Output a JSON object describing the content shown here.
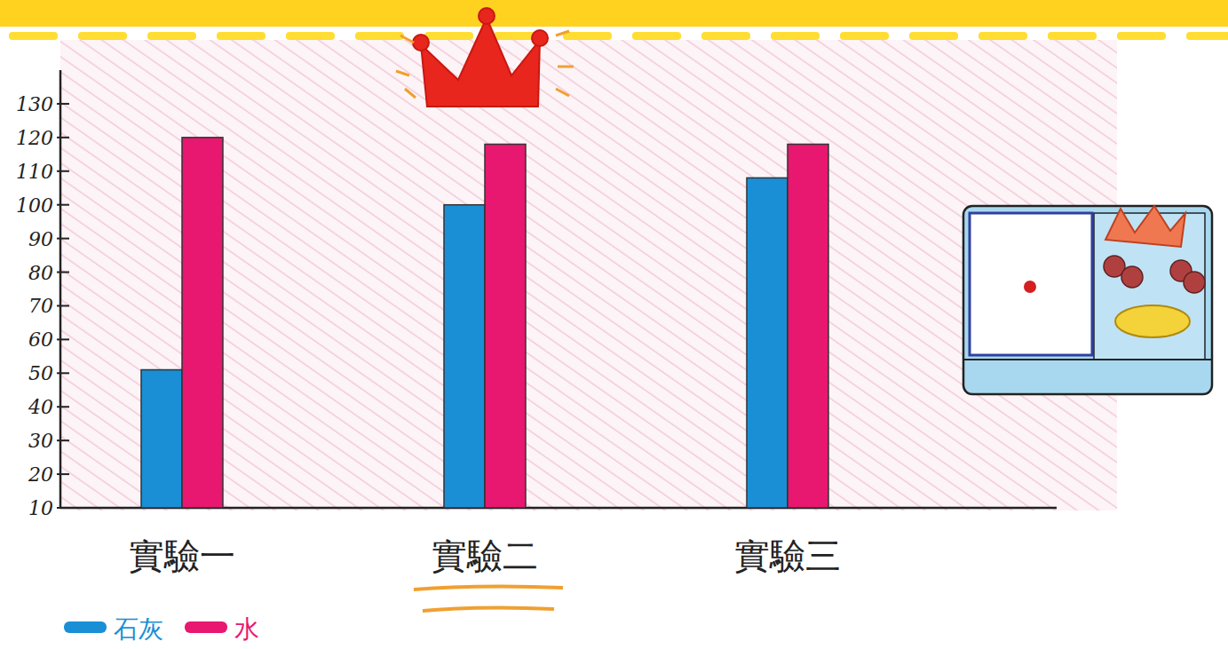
{
  "chart_data": {
    "type": "bar",
    "categories": [
      "實驗一",
      "實驗二",
      "實驗三"
    ],
    "series": [
      {
        "name": "石灰",
        "color": "#1a8fd6",
        "values": [
          51,
          100,
          108
        ]
      },
      {
        "name": "水",
        "color": "#e8176f",
        "values": [
          120,
          118,
          118
        ]
      }
    ],
    "ylim": [
      10,
      140
    ],
    "yticks": [
      10,
      20,
      30,
      40,
      50,
      60,
      70,
      80,
      90,
      100,
      110,
      120,
      130
    ],
    "legend": "bottom-left",
    "grid": false
  }
}
